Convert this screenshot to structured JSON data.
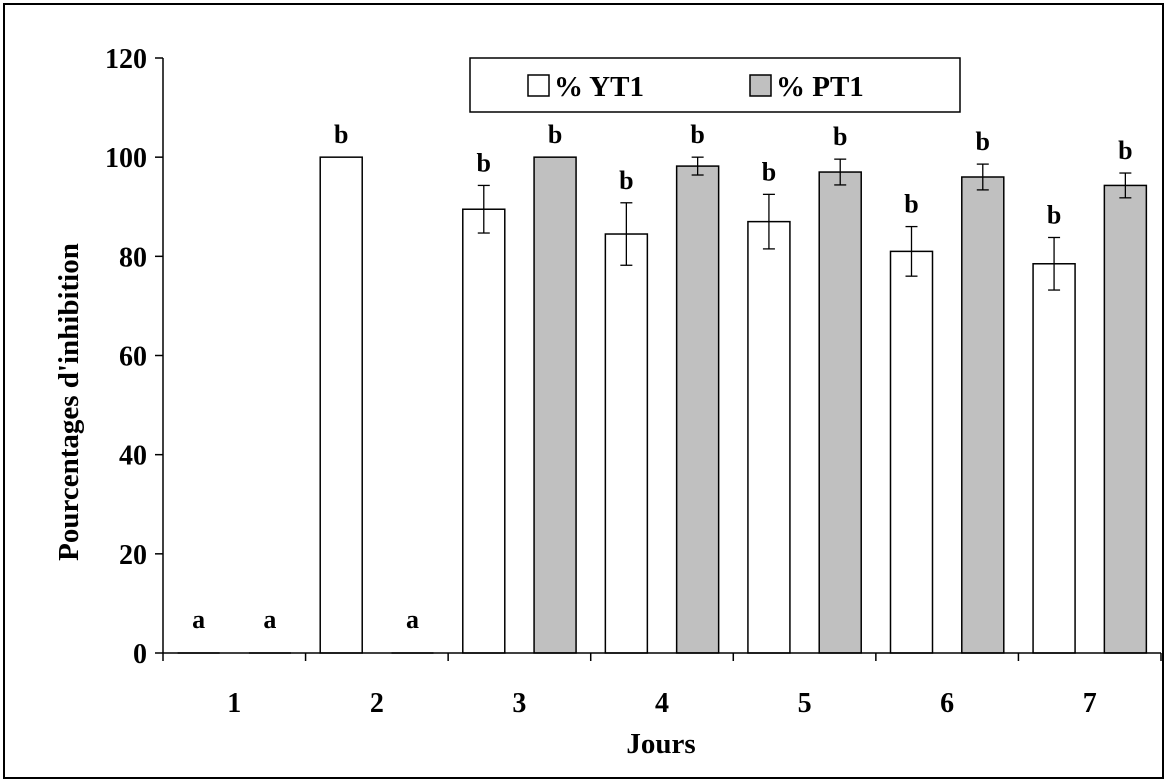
{
  "chart_data": {
    "type": "bar",
    "xlabel": "Jours",
    "ylabel": "Pourcentages d'inhibition",
    "categories": [
      "1",
      "2",
      "3",
      "4",
      "5",
      "6",
      "7"
    ],
    "ylim": [
      0,
      120
    ],
    "yticks": [
      "0",
      "20",
      "40",
      "60",
      "80",
      "100",
      "120"
    ],
    "grid": false,
    "legend_position": "top-center",
    "series": [
      {
        "name": "% YT1",
        "color": "#ffffff",
        "values": [
          0,
          100,
          89.5,
          84.5,
          87,
          81,
          78.5
        ],
        "errors": [
          0,
          0,
          4.8,
          6.3,
          5.5,
          5,
          5.3
        ],
        "labels": [
          "a",
          "b",
          "b",
          "b",
          "b",
          "b",
          "b"
        ]
      },
      {
        "name": "% PT1",
        "color": "#c0c0c0",
        "values": [
          0,
          0,
          100,
          98.2,
          97,
          96,
          94.3
        ],
        "errors": [
          0,
          0,
          0,
          1.8,
          2.6,
          2.6,
          2.5
        ],
        "labels": [
          "a",
          "a",
          "b",
          "b",
          "b",
          "b",
          "b"
        ]
      }
    ]
  }
}
